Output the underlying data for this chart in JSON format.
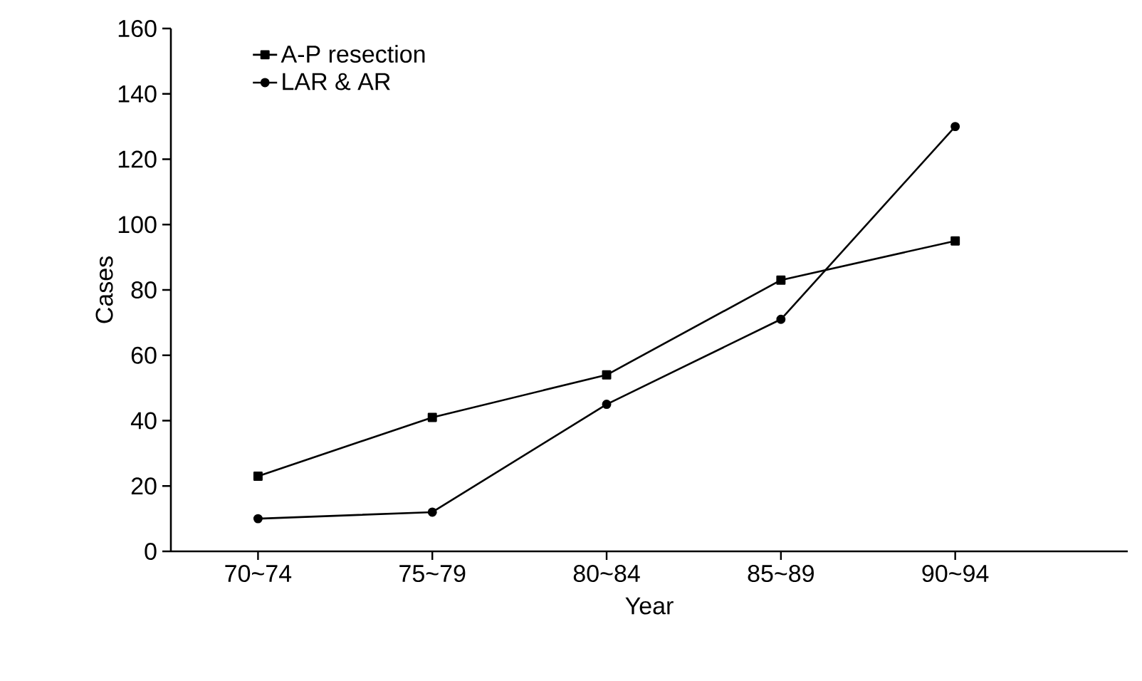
{
  "chart_data": {
    "type": "line",
    "xlabel": "Year",
    "ylabel": "Cases",
    "categories": [
      "70~74",
      "75~79",
      "80~84",
      "85~89",
      "90~94"
    ],
    "series": [
      {
        "name": "A-P resection",
        "color": "#000000",
        "marker": "square",
        "values": [
          23,
          41,
          54,
          83,
          95
        ]
      },
      {
        "name": "LAR & AR",
        "color": "#000000",
        "marker": "circle",
        "values": [
          10,
          12,
          45,
          71,
          130
        ]
      }
    ],
    "ylim": [
      0,
      160
    ],
    "yticks": [
      0,
      20,
      40,
      60,
      80,
      100,
      120,
      140,
      160
    ],
    "legend": "top left",
    "grid": false,
    "line_style": "solid"
  }
}
